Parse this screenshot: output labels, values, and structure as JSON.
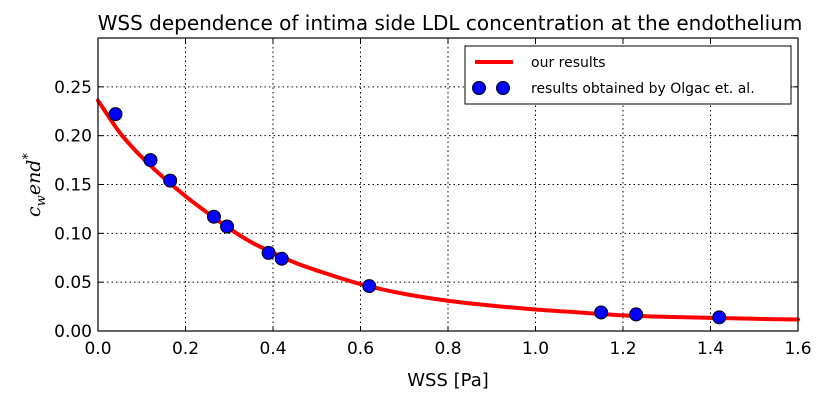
{
  "chart_data": {
    "type": "line",
    "title": "WSS dependence of intima side LDL concentration at the endothelium",
    "xlabel": "WSS [Pa]",
    "ylabel": {
      "base": "c",
      "sub": "w",
      "rest": "end",
      "sup": "*"
    },
    "xlim": [
      0.0,
      1.6
    ],
    "ylim": [
      0.0,
      0.3
    ],
    "xticks": [
      0.0,
      0.2,
      0.4,
      0.6,
      0.8,
      1.0,
      1.2,
      1.4,
      1.6
    ],
    "xtick_labels": [
      "0.0",
      "0.2",
      "0.4",
      "0.6",
      "0.8",
      "1.0",
      "1.2",
      "1.4",
      "1.6"
    ],
    "yticks": [
      0.0,
      0.05,
      0.1,
      0.15,
      0.2,
      0.25
    ],
    "ytick_labels": [
      "0.00",
      "0.05",
      "0.10",
      "0.15",
      "0.20",
      "0.25"
    ],
    "grid": true,
    "legend_position": "top-right",
    "series": [
      {
        "name": "our results",
        "kind": "line",
        "color": "#ff0000",
        "x": [
          0.0,
          0.05,
          0.1,
          0.15,
          0.2,
          0.25,
          0.3,
          0.35,
          0.4,
          0.45,
          0.5,
          0.6,
          0.7,
          0.8,
          0.9,
          1.0,
          1.1,
          1.2,
          1.3,
          1.4,
          1.5,
          1.6
        ],
        "y": [
          0.236,
          0.203,
          0.178,
          0.157,
          0.138,
          0.121,
          0.105,
          0.091,
          0.08,
          0.07,
          0.062,
          0.048,
          0.038,
          0.031,
          0.026,
          0.022,
          0.019,
          0.016,
          0.0145,
          0.0135,
          0.0125,
          0.0118
        ]
      },
      {
        "name": "results obtained by Olgac et. al.",
        "kind": "scatter",
        "color": "#0000ff",
        "x": [
          0.04,
          0.12,
          0.165,
          0.265,
          0.295,
          0.39,
          0.42,
          0.62,
          1.15,
          1.23,
          1.42
        ],
        "y": [
          0.222,
          0.175,
          0.154,
          0.117,
          0.107,
          0.08,
          0.074,
          0.046,
          0.019,
          0.017,
          0.014
        ]
      }
    ]
  }
}
